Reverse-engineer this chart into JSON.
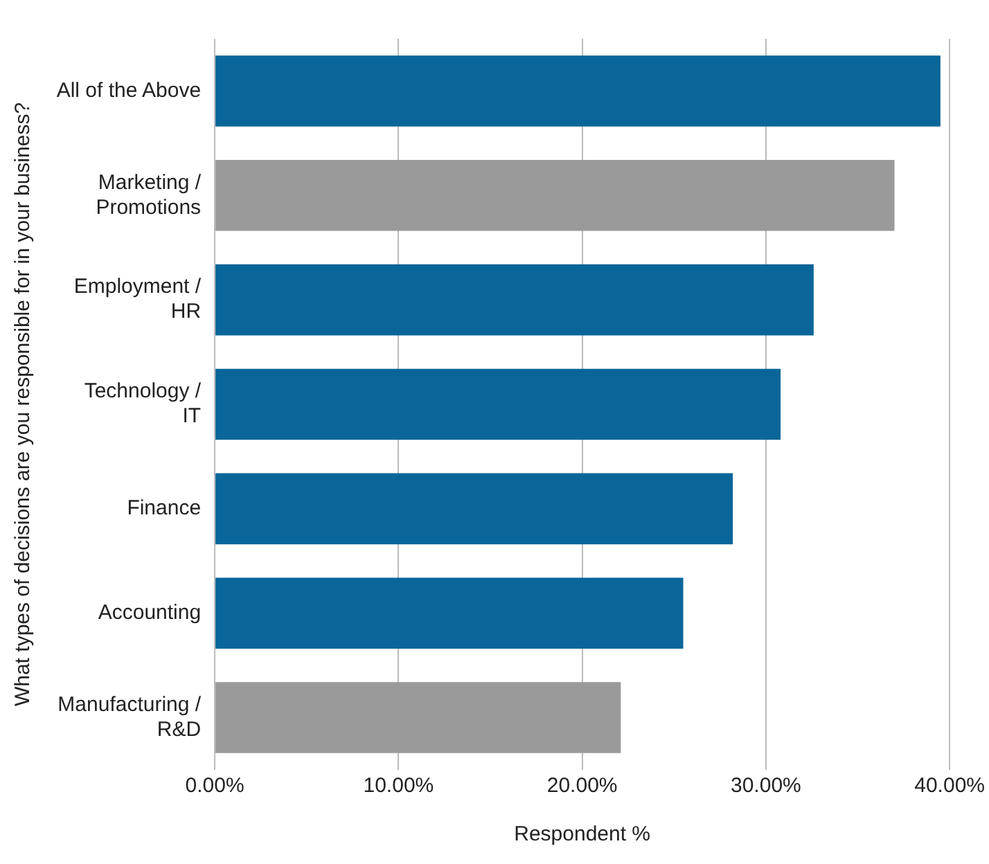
{
  "chart_data": {
    "type": "bar",
    "orientation": "horizontal",
    "ylabel": "What types of decisions are you responsible for in your business?",
    "xlabel": "Respondent %",
    "categories": [
      "All of the Above",
      "Marketing / Promotions",
      "Employment / HR",
      "Technology / IT",
      "Finance",
      "Accounting",
      "Manufacturing / R&D"
    ],
    "values": [
      39.5,
      37.0,
      32.6,
      30.8,
      28.2,
      25.5,
      22.1
    ],
    "colors": [
      "#0a6699",
      "#9a9a9a",
      "#0a6699",
      "#0a6699",
      "#0a6699",
      "#0a6699",
      "#9a9a9a"
    ],
    "xlim": [
      0,
      40
    ],
    "xticks": [
      {
        "value": 0,
        "label": "0.00%"
      },
      {
        "value": 10,
        "label": "10.00%"
      },
      {
        "value": 20,
        "label": "20.00%"
      },
      {
        "value": 30,
        "label": "30.00%"
      },
      {
        "value": 40,
        "label": "40.00%"
      }
    ],
    "grid": "x",
    "legend": false
  }
}
